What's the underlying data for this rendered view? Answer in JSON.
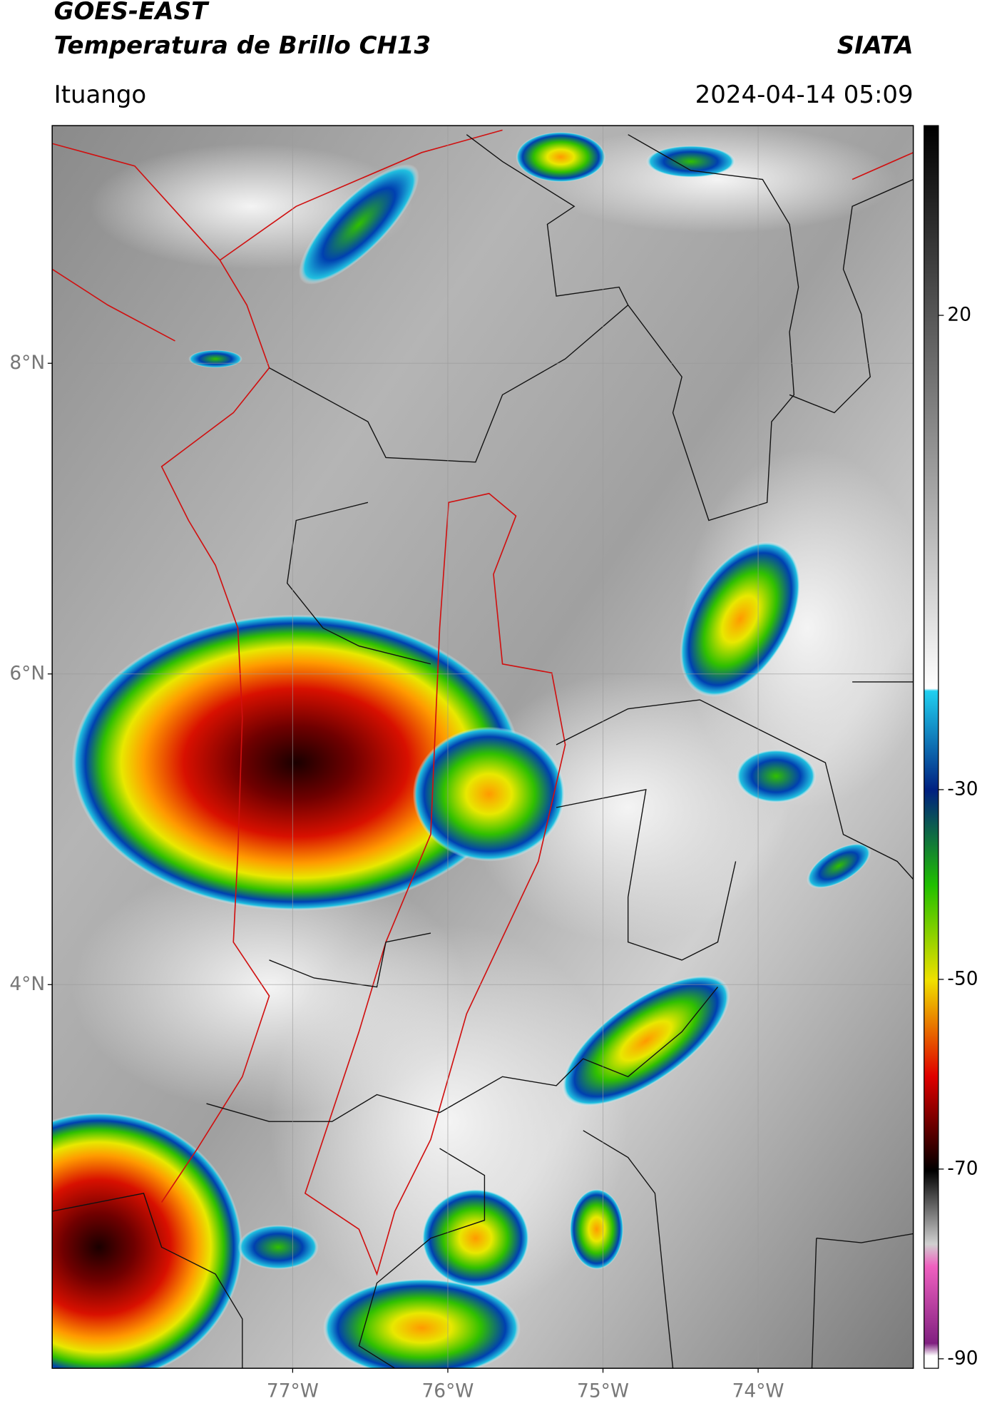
{
  "header": {
    "title": "GOES-EAST",
    "subtitle": "Temperatura de Brillo CH13",
    "source": "SIATA",
    "location": "Ituango",
    "datetime": "2024-04-14 05:09"
  },
  "map": {
    "lat_lim": [
      1.53,
      9.53
    ],
    "lon_lim": [
      -78.55,
      -73.0
    ],
    "lat_ticks": [
      {
        "value": 8,
        "label": "8°N"
      },
      {
        "value": 6,
        "label": "6°N"
      },
      {
        "value": 4,
        "label": "4°N"
      }
    ],
    "lon_ticks": [
      {
        "value": -77,
        "label": "77°W"
      },
      {
        "value": -76,
        "label": "76°W"
      },
      {
        "value": -75,
        "label": "75°W"
      },
      {
        "value": -74,
        "label": "74°W"
      }
    ]
  },
  "colorbar": {
    "lim": [
      -91,
      40
    ],
    "ticks": [
      20,
      -30,
      -50,
      -70,
      -90
    ]
  }
}
